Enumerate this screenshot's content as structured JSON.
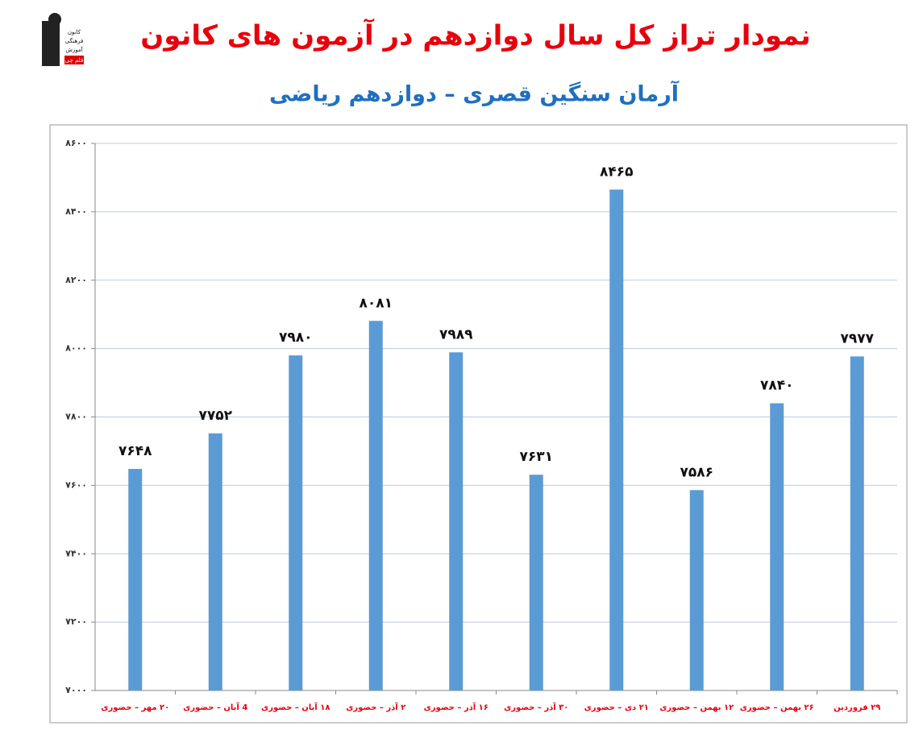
{
  "logo": {
    "lines": [
      "کانون",
      "فرهنگی",
      "آموزش",
      "قلم چی"
    ]
  },
  "chart_data": {
    "type": "bar",
    "title": "نمودار تراز کل سال دوازدهم در آزمون های کانون",
    "subtitle": "آرمان سنگین قصری – دوازدهم ریاضی",
    "categories": [
      "۲۰ مهر – حضوری",
      "4 آبان – حضوری",
      "۱۸ آبان – حضوری",
      "۲ آذر – حضوری",
      "۱۶ آذر – حضوری",
      "۳۰ آذر – حضوری",
      "۲۱ دی – حضوری",
      "۱۲ بهمن – حضوری",
      "۲۶ بهمن – حضوری",
      "۲۹ فروردین"
    ],
    "values": [
      7648,
      7752,
      7980,
      8081,
      7989,
      7631,
      8465,
      7586,
      7840,
      7977
    ],
    "value_labels": [
      "۷۶۴۸",
      "۷۷۵۲",
      "۷۹۸۰",
      "۸۰۸۱",
      "۷۹۸۹",
      "۷۶۳۱",
      "۸۴۶۵",
      "۷۵۸۶",
      "۷۸۴۰",
      "۷۹۷۷"
    ],
    "color": "#5b9bd5",
    "ylim": [
      7000,
      8600
    ],
    "yticks": [
      {
        "value": 7000,
        "label": "۷۰۰۰"
      },
      {
        "value": 7200,
        "label": "۷۲۰۰"
      },
      {
        "value": 7400,
        "label": "۷۴۰۰"
      },
      {
        "value": 7600,
        "label": "۷۶۰۰"
      },
      {
        "value": 7800,
        "label": "۷۸۰۰"
      },
      {
        "value": 8000,
        "label": "۸۰۰۰"
      },
      {
        "value": 8200,
        "label": "۸۲۰۰"
      },
      {
        "value": 8400,
        "label": "۸۴۰۰"
      },
      {
        "value": 8600,
        "label": "۸۶۰۰"
      }
    ],
    "grid": true
  }
}
